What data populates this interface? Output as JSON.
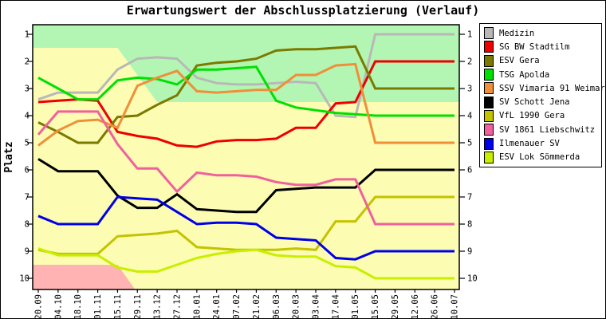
{
  "chart_data": {
    "type": "line",
    "title": "Erwartungswert der Abschlussplatzierung (Verlauf)",
    "ylabel": "Platz",
    "legend_position": "right",
    "y_ticks": [
      1,
      2,
      3,
      4,
      5,
      6,
      7,
      8,
      9,
      10
    ],
    "y_axis_sides": "both",
    "ylim": [
      0.65,
      10.4
    ],
    "x_tick_labels": [
      "20.09",
      "04.10",
      "18.10",
      "01.11",
      "15.11",
      "29.11",
      "13.12",
      "27.12",
      "10.01",
      "24.01",
      "07.02",
      "21.02",
      "06.03",
      "20.03",
      "03.04",
      "17.04",
      "01.05",
      "15.05",
      "29.05",
      "12.06",
      "26.06",
      "10.07"
    ],
    "zones": [
      {
        "name": "background-yellow",
        "color": "#fcfcb3",
        "points": [
          [
            -0.28,
            0.65
          ],
          [
            21.24,
            0.65
          ],
          [
            21.24,
            10.41
          ],
          [
            -0.28,
            10.41
          ]
        ]
      },
      {
        "name": "top-green",
        "color": "#b3f6b3",
        "points": [
          [
            -0.28,
            0.65
          ],
          [
            21.24,
            0.65
          ],
          [
            21.24,
            3.5
          ],
          [
            6,
            3.5
          ],
          [
            4,
            1.5
          ],
          [
            -0.28,
            1.5
          ]
        ]
      },
      {
        "name": "bottom-pink",
        "color": "#ffb3b3",
        "points": [
          [
            -0.28,
            9.5
          ],
          [
            4,
            9.5
          ],
          [
            4.88,
            10.41
          ],
          [
            -0.28,
            10.41
          ]
        ]
      }
    ],
    "series": [
      {
        "name": "Medizin",
        "color": "#b8b8b8",
        "values": [
          3.4,
          3.15,
          3.15,
          3.15,
          2.3,
          1.9,
          1.85,
          1.9,
          2.6,
          2.8,
          2.85,
          2.85,
          2.8,
          2.75,
          2.8,
          4.0,
          4.05,
          1.0,
          1.0,
          1.0,
          1.0,
          1.0
        ]
      },
      {
        "name": "SG BW Stadtilm",
        "color": "#ee0000",
        "values": [
          3.5,
          3.45,
          3.4,
          3.45,
          4.6,
          4.75,
          4.85,
          5.1,
          5.15,
          4.95,
          4.9,
          4.9,
          4.85,
          4.45,
          4.45,
          3.55,
          3.5,
          2.0,
          2.0,
          2.0,
          2.0,
          2.0
        ]
      },
      {
        "name": "ESV Gera",
        "color": "#7a7a00",
        "values": [
          4.25,
          4.6,
          5.0,
          5.0,
          4.05,
          4.0,
          3.6,
          3.25,
          2.15,
          2.05,
          2.0,
          1.9,
          1.6,
          1.55,
          1.55,
          1.5,
          1.45,
          3.0,
          3.0,
          3.0,
          3.0,
          3.0
        ]
      },
      {
        "name": "TSG Apolda",
        "color": "#00e000",
        "values": [
          2.6,
          3.0,
          3.4,
          3.4,
          2.7,
          2.6,
          2.65,
          2.85,
          2.3,
          2.3,
          2.25,
          2.2,
          3.45,
          3.7,
          3.8,
          3.9,
          3.95,
          4.0,
          4.0,
          4.0,
          4.0,
          4.0
        ]
      },
      {
        "name": "SSV Vimaria 91 Weimar",
        "color": "#ef8f39",
        "values": [
          5.1,
          4.55,
          4.2,
          4.15,
          4.45,
          2.9,
          2.6,
          2.35,
          3.1,
          3.15,
          3.1,
          3.05,
          3.05,
          2.5,
          2.5,
          2.15,
          2.1,
          5.0,
          5.0,
          5.0,
          5.0,
          5.0
        ]
      },
      {
        "name": "SV Schott Jena",
        "color": "#000000",
        "values": [
          5.6,
          6.05,
          6.05,
          6.05,
          6.95,
          7.4,
          7.4,
          6.9,
          7.45,
          7.5,
          7.55,
          7.55,
          6.75,
          6.7,
          6.65,
          6.65,
          6.65,
          6.0,
          6.0,
          6.0,
          6.0,
          6.0
        ]
      },
      {
        "name": "VfL 1990 Gera",
        "color": "#c3c300",
        "values": [
          8.95,
          9.1,
          9.1,
          9.1,
          8.45,
          8.4,
          8.35,
          8.25,
          8.85,
          8.9,
          8.95,
          8.95,
          8.95,
          8.9,
          8.95,
          7.9,
          7.9,
          7.0,
          7.0,
          7.0,
          7.0,
          7.0
        ]
      },
      {
        "name": "SV 1861 Liebschwitz",
        "color": "#f0609d",
        "values": [
          4.7,
          3.85,
          3.85,
          3.85,
          5.05,
          5.95,
          5.95,
          6.8,
          6.1,
          6.2,
          6.2,
          6.25,
          6.45,
          6.55,
          6.55,
          6.35,
          6.35,
          8.0,
          8.0,
          8.0,
          8.0,
          8.0
        ]
      },
      {
        "name": "Ilmenauer SV",
        "color": "#0000e8",
        "values": [
          7.7,
          8.0,
          8.0,
          8.0,
          7.0,
          7.05,
          7.1,
          7.55,
          8.0,
          7.95,
          7.95,
          8.0,
          8.5,
          8.55,
          8.6,
          9.25,
          9.3,
          9.0,
          9.0,
          9.0,
          9.0,
          9.0
        ]
      },
      {
        "name": "ESV Lok Sömmerda",
        "color": "#c8ef00",
        "values": [
          8.9,
          9.15,
          9.15,
          9.15,
          9.6,
          9.75,
          9.75,
          9.5,
          9.25,
          9.1,
          9.0,
          8.95,
          9.15,
          9.2,
          9.2,
          9.55,
          9.6,
          10.0,
          10.0,
          10.0,
          10.0,
          10.0
        ]
      }
    ]
  }
}
